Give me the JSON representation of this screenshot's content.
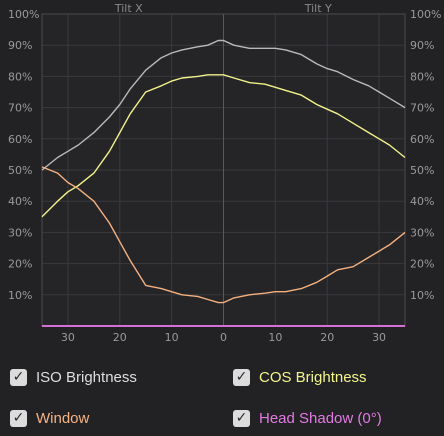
{
  "chart_data": {
    "type": "line",
    "panels": [
      "Tilt X",
      "Tilt Y"
    ],
    "x_ticks": [
      "30",
      "20",
      "10",
      "0",
      "10",
      "20",
      "30"
    ],
    "y_ticks": [
      "10%",
      "20%",
      "30%",
      "40%",
      "50%",
      "60%",
      "70%",
      "80%",
      "90%",
      "100%"
    ],
    "xlim": [
      -35,
      35
    ],
    "ylim": [
      0,
      100
    ],
    "x": [
      -35,
      -32,
      -30,
      -28,
      -25,
      -22,
      -20,
      -18,
      -15,
      -12,
      -10,
      -8,
      -5,
      -3,
      -1,
      0,
      2,
      5,
      8,
      10,
      12,
      15,
      18,
      20,
      22,
      25,
      28,
      30,
      32,
      35
    ],
    "series": [
      {
        "name": "ISO Brightness",
        "color": "#b9b9b9",
        "values": [
          50,
          54,
          56,
          58,
          62,
          67,
          71,
          76,
          82,
          86,
          87.5,
          88.5,
          89.5,
          90,
          91.5,
          91.5,
          90,
          89,
          89,
          89,
          88.5,
          87,
          84,
          82.5,
          81.5,
          79,
          77,
          75,
          73,
          70
        ]
      },
      {
        "name": "COS Brightness",
        "color": "#f2f28a",
        "values": [
          35,
          40,
          43,
          45,
          49,
          56,
          62,
          68,
          75,
          77,
          78.5,
          79.5,
          80,
          80.5,
          80.5,
          80.5,
          79.5,
          78,
          77.5,
          76.5,
          75.5,
          74,
          71,
          69.5,
          68,
          65,
          62,
          60,
          58,
          54
        ]
      },
      {
        "name": "Window",
        "color": "#f5b07f",
        "values": [
          51,
          49,
          46,
          44,
          40,
          33,
          27,
          21,
          13,
          12,
          11,
          10,
          9.5,
          8.5,
          7.5,
          7.5,
          9,
          10,
          10.5,
          11,
          11,
          12,
          14,
          16,
          18,
          19,
          22,
          24,
          26,
          30
        ]
      },
      {
        "name": "Head Shadow (0°)",
        "color": "#d56ed5",
        "values": [
          0,
          0,
          0,
          0,
          0,
          0,
          0,
          0,
          0,
          0,
          0,
          0,
          0,
          0,
          0,
          0,
          0,
          0,
          0,
          0,
          0,
          0,
          0,
          0,
          0,
          0,
          0,
          0,
          0,
          0
        ]
      }
    ],
    "grid": true
  },
  "legend": {
    "items": [
      {
        "label": "ISO Brightness",
        "color": "#dedede",
        "check": "✓"
      },
      {
        "label": "COS Brightness",
        "color": "#f4f48c",
        "check": "✓"
      },
      {
        "label": "Window",
        "color": "#f6b383",
        "check": "✓"
      },
      {
        "label": "Head Shadow (0°)",
        "color": "#e27ae2",
        "check": "✓"
      }
    ]
  }
}
